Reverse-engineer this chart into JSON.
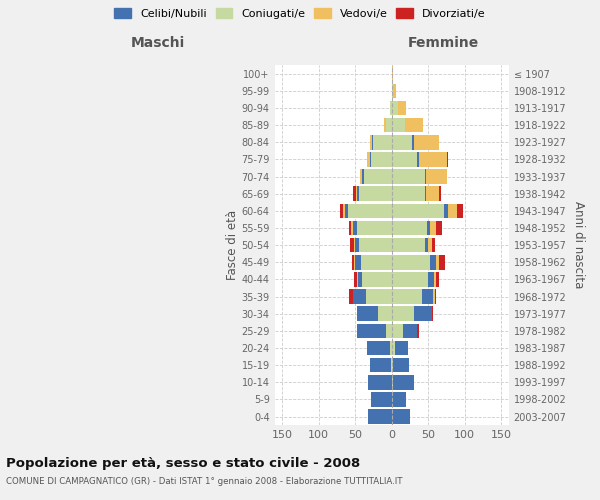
{
  "age_groups": [
    "0-4",
    "5-9",
    "10-14",
    "15-19",
    "20-24",
    "25-29",
    "30-34",
    "35-39",
    "40-44",
    "45-49",
    "50-54",
    "55-59",
    "60-64",
    "65-69",
    "70-74",
    "75-79",
    "80-84",
    "85-89",
    "90-94",
    "95-99",
    "100+"
  ],
  "birth_years": [
    "2003-2007",
    "1998-2002",
    "1993-1997",
    "1988-1992",
    "1983-1987",
    "1978-1982",
    "1973-1977",
    "1968-1972",
    "1963-1967",
    "1958-1962",
    "1953-1957",
    "1948-1952",
    "1943-1947",
    "1938-1942",
    "1933-1937",
    "1928-1932",
    "1923-1927",
    "1918-1922",
    "1913-1917",
    "1908-1912",
    "≤ 1907"
  ],
  "colors": {
    "celibi": "#4472b0",
    "coniugati": "#c5d9a0",
    "vedovi": "#f0c060",
    "divorziati": "#cc2222"
  },
  "males": {
    "coniugati": [
      0,
      0,
      0,
      1,
      2,
      8,
      18,
      35,
      40,
      42,
      45,
      48,
      60,
      45,
      38,
      28,
      25,
      8,
      2,
      0,
      0
    ],
    "celibi": [
      32,
      28,
      32,
      28,
      32,
      40,
      30,
      18,
      6,
      8,
      5,
      5,
      4,
      2,
      3,
      2,
      2,
      0,
      0,
      0,
      0
    ],
    "vedovi": [
      0,
      0,
      0,
      0,
      0,
      0,
      0,
      0,
      1,
      2,
      2,
      2,
      2,
      2,
      2,
      4,
      3,
      2,
      0,
      0,
      0
    ],
    "divorziati": [
      0,
      0,
      0,
      0,
      0,
      0,
      0,
      5,
      4,
      2,
      5,
      4,
      4,
      4,
      0,
      0,
      0,
      0,
      0,
      0,
      0
    ]
  },
  "females": {
    "coniugati": [
      0,
      0,
      2,
      2,
      5,
      15,
      30,
      42,
      50,
      52,
      45,
      48,
      72,
      45,
      45,
      35,
      28,
      18,
      8,
      2,
      0
    ],
    "celibi": [
      25,
      20,
      28,
      22,
      18,
      20,
      25,
      15,
      8,
      8,
      5,
      5,
      5,
      2,
      2,
      2,
      2,
      0,
      0,
      0,
      0
    ],
    "vedovi": [
      0,
      0,
      0,
      0,
      0,
      0,
      0,
      2,
      2,
      5,
      5,
      8,
      12,
      18,
      28,
      38,
      35,
      25,
      12,
      4,
      2
    ],
    "divorziati": [
      0,
      0,
      0,
      0,
      0,
      2,
      2,
      2,
      5,
      8,
      4,
      8,
      8,
      2,
      0,
      2,
      0,
      0,
      0,
      0,
      0
    ]
  },
  "xlim": 160,
  "title": "Popolazione per età, sesso e stato civile - 2008",
  "subtitle": "COMUNE DI CAMPAGNATICO (GR) - Dati ISTAT 1° gennaio 2008 - Elaborazione TUTTITALIA.IT",
  "xlabel_left": "Maschi",
  "xlabel_right": "Femmine",
  "ylabel": "Fasce di età",
  "ylabel_right": "Anni di nascita",
  "legend_labels": [
    "Celibi/Nubili",
    "Coniugati/e",
    "Vedovi/e",
    "Divorziati/e"
  ],
  "bg_color": "#f0f0f0",
  "plot_bg_color": "#ffffff",
  "grid_color": "#cccccc"
}
